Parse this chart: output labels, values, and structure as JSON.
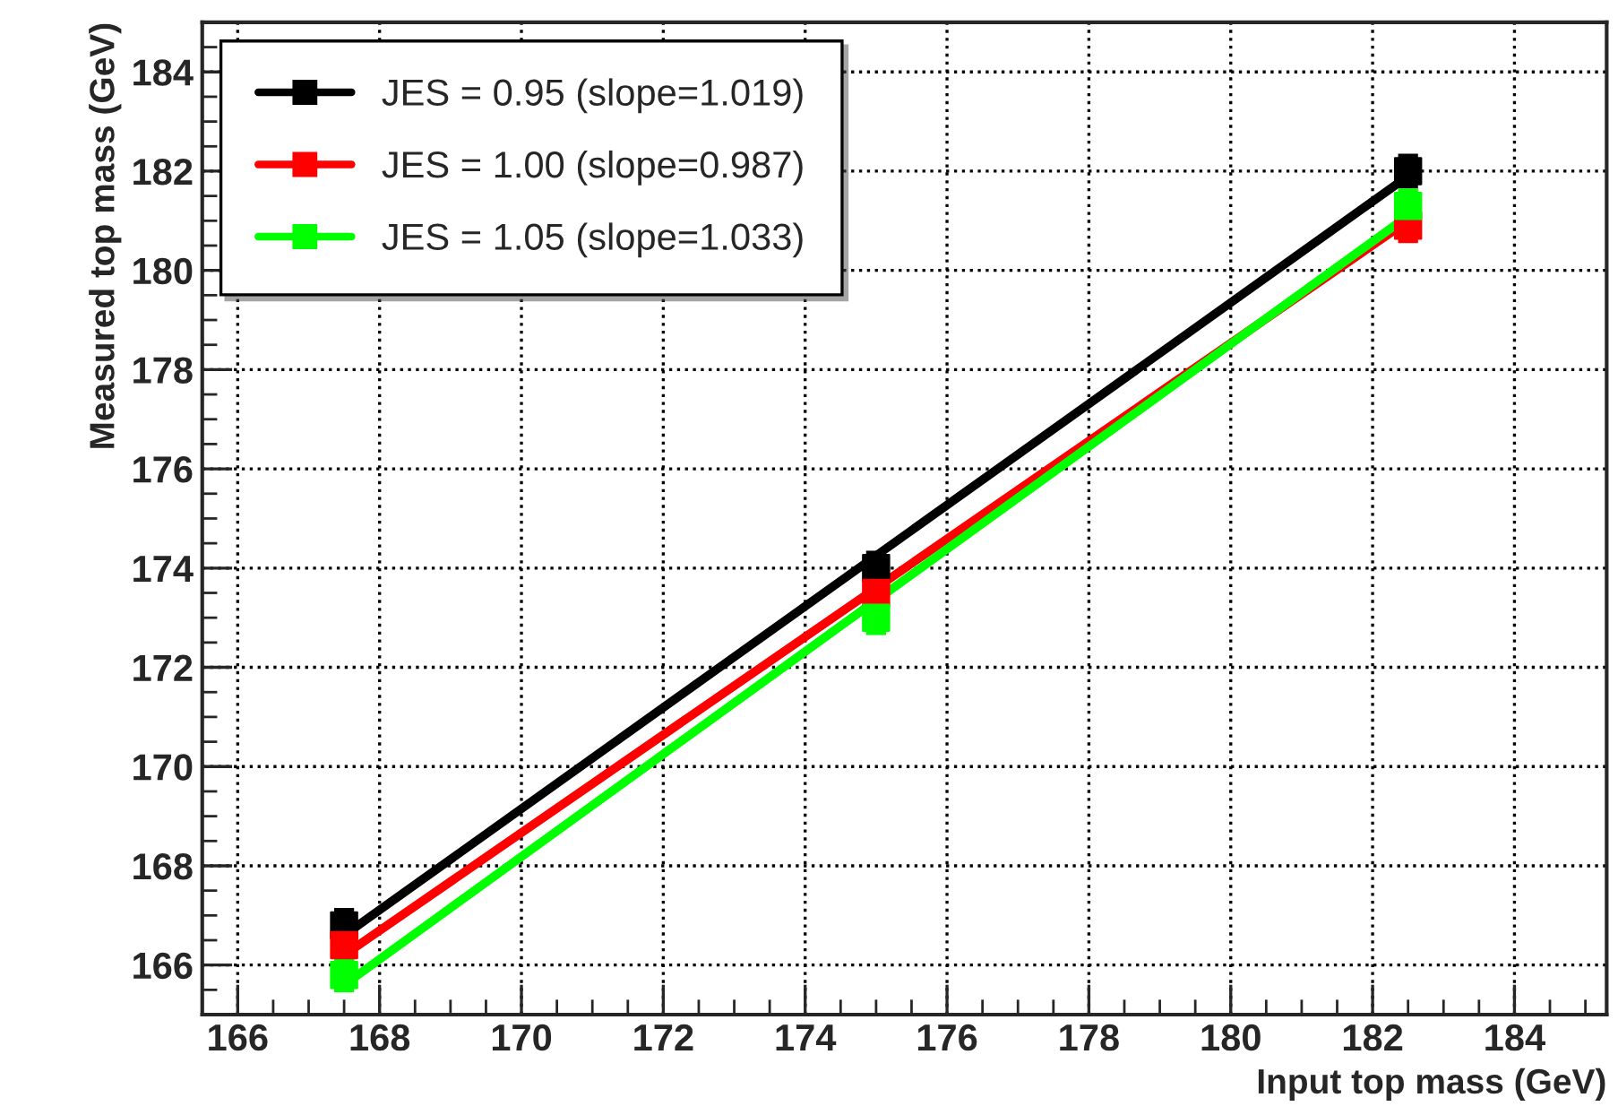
{
  "chart_data": {
    "type": "scatter",
    "xlabel": "Input top mass (GeV)",
    "ylabel": "Measured top mass (GeV)",
    "xlim": [
      165.5,
      185.3
    ],
    "ylim": [
      165,
      185
    ],
    "xticks": [
      166,
      168,
      170,
      172,
      174,
      176,
      178,
      180,
      182,
      184
    ],
    "yticks": [
      166,
      168,
      170,
      172,
      174,
      176,
      178,
      180,
      182,
      184
    ],
    "grid": true,
    "legend": "top left",
    "marker": "square",
    "series": [
      {
        "name": "JES = 0.95 (slope=1.019)",
        "color": "#000000",
        "x": [
          167.5,
          175,
          182.5
        ],
        "values": [
          166.8,
          174.0,
          182.0
        ],
        "errors": [
          0.3,
          0.3,
          0.3
        ]
      },
      {
        "name": "JES = 1.00 (slope=0.987)",
        "color": "#ff0000",
        "x": [
          167.5,
          175,
          182.5
        ],
        "values": [
          166.4,
          173.5,
          180.9
        ],
        "errors": [
          0.3,
          0.3,
          0.3
        ]
      },
      {
        "name": "JES = 1.05 (slope=1.033)",
        "color": "#00ff00",
        "x": [
          167.5,
          175,
          182.5
        ],
        "values": [
          165.8,
          173.0,
          181.3
        ],
        "errors": [
          0.3,
          0.3,
          0.3
        ]
      },
      {
        "type": "line",
        "marker": "none",
        "color": "#000000",
        "x": [
          167.5,
          182.5
        ],
        "values": [
          166.6,
          181.9
        ]
      },
      {
        "type": "line",
        "marker": "none",
        "color": "#ff0000",
        "x": [
          167.5,
          182.5
        ],
        "values": [
          166.2,
          181.0
        ]
      },
      {
        "type": "line",
        "marker": "none",
        "color": "#00ff00",
        "x": [
          167.5,
          182.5
        ],
        "values": [
          165.6,
          181.1
        ]
      }
    ]
  }
}
